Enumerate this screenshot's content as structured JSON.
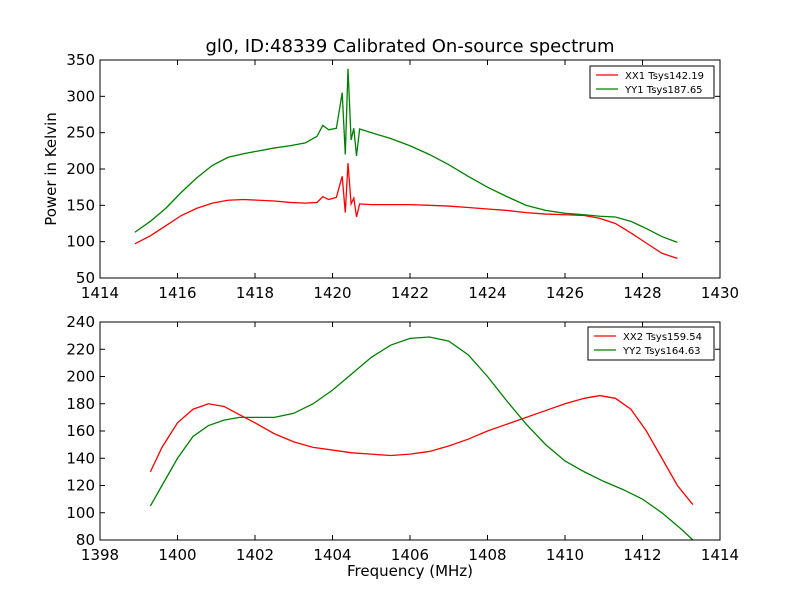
{
  "title": "gl0, ID:48339 Calibrated On-source spectrum",
  "ylabel": "Power in Kelvin",
  "xlabel": "Frequency (MHz)",
  "chart_data": [
    {
      "type": "line",
      "title": "gl0, ID:48339 Calibrated On-source spectrum",
      "ylabel": "Power in Kelvin",
      "xlabel": "",
      "xlim": [
        1414,
        1430
      ],
      "ylim": [
        50,
        350
      ],
      "xticks": [
        1414,
        1416,
        1418,
        1420,
        1422,
        1424,
        1426,
        1428,
        1430
      ],
      "yticks": [
        50,
        100,
        150,
        200,
        250,
        300,
        350
      ],
      "legend_position": "top-right",
      "grid": false,
      "series": [
        {
          "name": "XX1 Tsys142.19",
          "color": "#ff0000",
          "points": [
            [
              1414.9,
              97
            ],
            [
              1415.3,
              108
            ],
            [
              1415.7,
              122
            ],
            [
              1416.1,
              136
            ],
            [
              1416.5,
              146
            ],
            [
              1416.9,
              153
            ],
            [
              1417.3,
              157
            ],
            [
              1417.7,
              158
            ],
            [
              1418.1,
              157
            ],
            [
              1418.5,
              156
            ],
            [
              1418.9,
              154
            ],
            [
              1419.3,
              153
            ],
            [
              1419.6,
              154
            ],
            [
              1419.75,
              162
            ],
            [
              1419.9,
              158
            ],
            [
              1420.1,
              161
            ],
            [
              1420.25,
              190
            ],
            [
              1420.33,
              140
            ],
            [
              1420.4,
              208
            ],
            [
              1420.48,
              152
            ],
            [
              1420.55,
              160
            ],
            [
              1420.62,
              134
            ],
            [
              1420.7,
              152
            ],
            [
              1421.0,
              151
            ],
            [
              1421.5,
              151
            ],
            [
              1422.0,
              151
            ],
            [
              1422.5,
              150
            ],
            [
              1423.0,
              149
            ],
            [
              1423.5,
              147
            ],
            [
              1424.0,
              145
            ],
            [
              1424.5,
              143
            ],
            [
              1425.0,
              140
            ],
            [
              1425.5,
              138
            ],
            [
              1426.0,
              137
            ],
            [
              1426.5,
              136
            ],
            [
              1426.9,
              132
            ],
            [
              1427.3,
              125
            ],
            [
              1427.7,
              112
            ],
            [
              1428.1,
              98
            ],
            [
              1428.5,
              84
            ],
            [
              1428.9,
              77
            ]
          ]
        },
        {
          "name": "YY1 Tsys187.65",
          "color": "#008000",
          "points": [
            [
              1414.9,
              113
            ],
            [
              1415.3,
              128
            ],
            [
              1415.7,
              146
            ],
            [
              1416.1,
              168
            ],
            [
              1416.5,
              188
            ],
            [
              1416.9,
              205
            ],
            [
              1417.3,
              216
            ],
            [
              1417.7,
              221
            ],
            [
              1418.1,
              225
            ],
            [
              1418.5,
              229
            ],
            [
              1418.9,
              232
            ],
            [
              1419.3,
              236
            ],
            [
              1419.6,
              245
            ],
            [
              1419.75,
              260
            ],
            [
              1419.9,
              254
            ],
            [
              1420.1,
              256
            ],
            [
              1420.25,
              305
            ],
            [
              1420.33,
              220
            ],
            [
              1420.4,
              338
            ],
            [
              1420.48,
              240
            ],
            [
              1420.55,
              256
            ],
            [
              1420.62,
              218
            ],
            [
              1420.7,
              255
            ],
            [
              1421.0,
              250
            ],
            [
              1421.5,
              242
            ],
            [
              1422.0,
              232
            ],
            [
              1422.5,
              220
            ],
            [
              1423.0,
              206
            ],
            [
              1423.5,
              190
            ],
            [
              1424.0,
              175
            ],
            [
              1424.5,
              162
            ],
            [
              1425.0,
              150
            ],
            [
              1425.5,
              143
            ],
            [
              1426.0,
              139
            ],
            [
              1426.5,
              137
            ],
            [
              1426.9,
              135
            ],
            [
              1427.3,
              134
            ],
            [
              1427.7,
              128
            ],
            [
              1428.1,
              118
            ],
            [
              1428.5,
              107
            ],
            [
              1428.9,
              99
            ]
          ]
        }
      ]
    },
    {
      "type": "line",
      "title": "",
      "ylabel": "",
      "xlabel": "Frequency (MHz)",
      "xlim": [
        1398,
        1414
      ],
      "ylim": [
        80,
        240
      ],
      "xticks": [
        1398,
        1400,
        1402,
        1404,
        1406,
        1408,
        1410,
        1412,
        1414
      ],
      "yticks": [
        80,
        100,
        120,
        140,
        160,
        180,
        200,
        220,
        240
      ],
      "legend_position": "top-right",
      "grid": false,
      "series": [
        {
          "name": "XX2 Tsys159.54",
          "color": "#ff0000",
          "points": [
            [
              1399.3,
              130
            ],
            [
              1399.6,
              148
            ],
            [
              1400.0,
              166
            ],
            [
              1400.4,
              176
            ],
            [
              1400.8,
              180
            ],
            [
              1401.2,
              178
            ],
            [
              1401.6,
              172
            ],
            [
              1402.0,
              166
            ],
            [
              1402.5,
              158
            ],
            [
              1403.0,
              152
            ],
            [
              1403.5,
              148
            ],
            [
              1404.0,
              146
            ],
            [
              1404.5,
              144
            ],
            [
              1405.0,
              143
            ],
            [
              1405.5,
              142
            ],
            [
              1406.0,
              143
            ],
            [
              1406.5,
              145
            ],
            [
              1407.0,
              149
            ],
            [
              1407.5,
              154
            ],
            [
              1408.0,
              160
            ],
            [
              1408.5,
              165
            ],
            [
              1409.0,
              170
            ],
            [
              1409.5,
              175
            ],
            [
              1410.0,
              180
            ],
            [
              1410.5,
              184
            ],
            [
              1410.9,
              186
            ],
            [
              1411.3,
              184
            ],
            [
              1411.7,
              176
            ],
            [
              1412.1,
              160
            ],
            [
              1412.5,
              140
            ],
            [
              1412.9,
              120
            ],
            [
              1413.3,
              106
            ]
          ]
        },
        {
          "name": "YY2 Tsys164.63",
          "color": "#008000",
          "points": [
            [
              1399.3,
              105
            ],
            [
              1399.6,
              120
            ],
            [
              1400.0,
              140
            ],
            [
              1400.4,
              156
            ],
            [
              1400.8,
              164
            ],
            [
              1401.2,
              168
            ],
            [
              1401.6,
              170
            ],
            [
              1402.0,
              170
            ],
            [
              1402.5,
              170
            ],
            [
              1403.0,
              173
            ],
            [
              1403.5,
              180
            ],
            [
              1404.0,
              190
            ],
            [
              1404.5,
              202
            ],
            [
              1405.0,
              214
            ],
            [
              1405.5,
              223
            ],
            [
              1406.0,
              228
            ],
            [
              1406.5,
              229
            ],
            [
              1407.0,
              226
            ],
            [
              1407.5,
              216
            ],
            [
              1408.0,
              200
            ],
            [
              1408.5,
              182
            ],
            [
              1409.0,
              165
            ],
            [
              1409.5,
              150
            ],
            [
              1410.0,
              138
            ],
            [
              1410.5,
              130
            ],
            [
              1411.0,
              123
            ],
            [
              1411.5,
              117
            ],
            [
              1412.0,
              110
            ],
            [
              1412.5,
              100
            ],
            [
              1413.0,
              88
            ],
            [
              1413.3,
              80
            ]
          ]
        }
      ]
    }
  ]
}
